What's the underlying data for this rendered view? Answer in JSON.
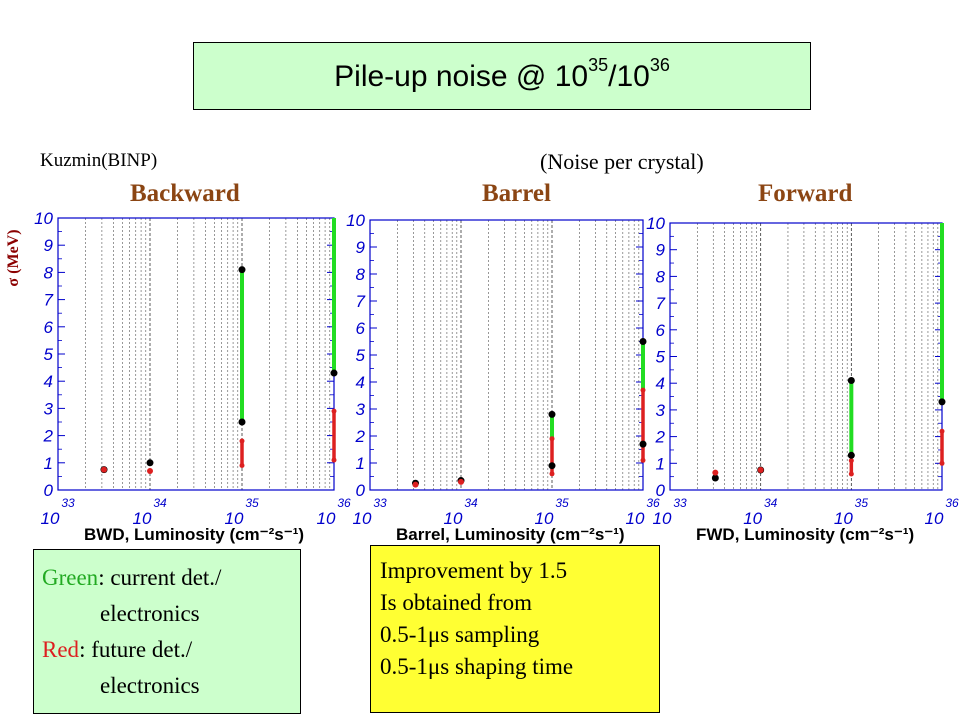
{
  "title": {
    "base": "Pile-up noise @ 10",
    "exp1": "35",
    "sep": "/10",
    "exp2": "36"
  },
  "author": "Kuzmin(BINP)",
  "subtitle": "(Noise per crystal)",
  "colors": {
    "green": "#22dd22",
    "red": "#dd2020",
    "dark_red": "#8b4513"
  },
  "chart_data": [
    {
      "type": "scatter",
      "panel_title": "Backward",
      "ylabel": "σ (MeV)",
      "xlabel": "BWD,  Luminosity (cm⁻²s⁻¹)",
      "x_tick_labels": [
        "10",
        "33",
        "10",
        "34",
        "10",
        "35",
        "10",
        "36"
      ],
      "xlim": [
        33,
        36
      ],
      "ylim": [
        0,
        10
      ],
      "y_tick_labels": [
        "0",
        "1",
        "2",
        "3",
        "4",
        "5",
        "6",
        "7",
        "8",
        "9",
        "10"
      ],
      "green_segments": [
        {
          "x": 35,
          "low": 2.5,
          "high": 8.1
        },
        {
          "x": 36,
          "low": 4.3,
          "high": 10
        }
      ],
      "red_segments": [
        {
          "x": 35,
          "low": 0.9,
          "high": 1.8
        },
        {
          "x": 36,
          "low": 1.1,
          "high": 2.9
        }
      ],
      "black_points": [
        {
          "x": 33.5,
          "y": 0.75
        },
        {
          "x": 34,
          "y": 1.0
        },
        {
          "x": 35,
          "y": 2.5
        },
        {
          "x": 35,
          "y": 8.1
        },
        {
          "x": 36,
          "y": 4.3
        }
      ],
      "red_points": [
        {
          "x": 33.5,
          "y": 0.75
        },
        {
          "x": 34,
          "y": 0.7
        }
      ]
    },
    {
      "type": "scatter",
      "panel_title": "Barrel",
      "ylabel": "",
      "xlabel": "Barrel,  Luminosity (cm⁻²s⁻¹)",
      "x_tick_labels": [
        "10",
        "33",
        "10",
        "34",
        "10",
        "35",
        "10",
        "36"
      ],
      "xlim": [
        33,
        36
      ],
      "ylim": [
        0,
        10
      ],
      "y_tick_labels": [
        "0",
        "1",
        "2",
        "3",
        "4",
        "5",
        "6",
        "7",
        "8",
        "9",
        "10"
      ],
      "green_segments": [
        {
          "x": 35,
          "low": 1.9,
          "high": 2.8
        },
        {
          "x": 36,
          "low": 3.7,
          "high": 5.5
        }
      ],
      "red_segments": [
        {
          "x": 35,
          "low": 0.6,
          "high": 1.9
        },
        {
          "x": 36,
          "low": 1.1,
          "high": 3.7
        }
      ],
      "black_points": [
        {
          "x": 33.5,
          "y": 0.25
        },
        {
          "x": 34,
          "y": 0.35
        },
        {
          "x": 35,
          "y": 0.9
        },
        {
          "x": 35,
          "y": 2.8
        },
        {
          "x": 36,
          "y": 1.7
        },
        {
          "x": 36,
          "y": 5.5
        }
      ],
      "red_points": [
        {
          "x": 33.5,
          "y": 0.2
        },
        {
          "x": 34,
          "y": 0.3
        }
      ]
    },
    {
      "type": "scatter",
      "panel_title": "Forward",
      "ylabel": "",
      "xlabel": "FWD,  Luminosity (cm⁻²s⁻¹)",
      "x_tick_labels": [
        "10",
        "33",
        "10",
        "34",
        "10",
        "35",
        "10",
        "36"
      ],
      "xlim": [
        33,
        36
      ],
      "ylim": [
        0,
        10
      ],
      "y_tick_labels": [
        "0",
        "1",
        "2",
        "3",
        "4",
        "5",
        "6",
        "7",
        "8",
        "9",
        "10"
      ],
      "green_segments": [
        {
          "x": 35,
          "low": 1.3,
          "high": 4.1
        },
        {
          "x": 36,
          "low": 3.3,
          "high": 10
        }
      ],
      "red_segments": [
        {
          "x": 35,
          "low": 0.6,
          "high": 1.1
        },
        {
          "x": 36,
          "low": 1.0,
          "high": 2.2
        }
      ],
      "black_points": [
        {
          "x": 33.5,
          "y": 0.45
        },
        {
          "x": 34,
          "y": 0.75
        },
        {
          "x": 35,
          "y": 1.3
        },
        {
          "x": 35,
          "y": 4.1
        },
        {
          "x": 36,
          "y": 3.3
        }
      ],
      "red_points": [
        {
          "x": 33.5,
          "y": 0.65
        },
        {
          "x": 34,
          "y": 0.75
        }
      ]
    }
  ],
  "legend": {
    "green_word": "Green",
    "green_text": ": current det./",
    "green_line2": "electronics",
    "red_word": "Red",
    "red_text": ": future det./",
    "red_line2": "electronics"
  },
  "note": {
    "lines": [
      "Improvement by 1.5",
      "Is obtained from",
      "0.5-1μs sampling",
      "0.5-1μs shaping time"
    ]
  }
}
